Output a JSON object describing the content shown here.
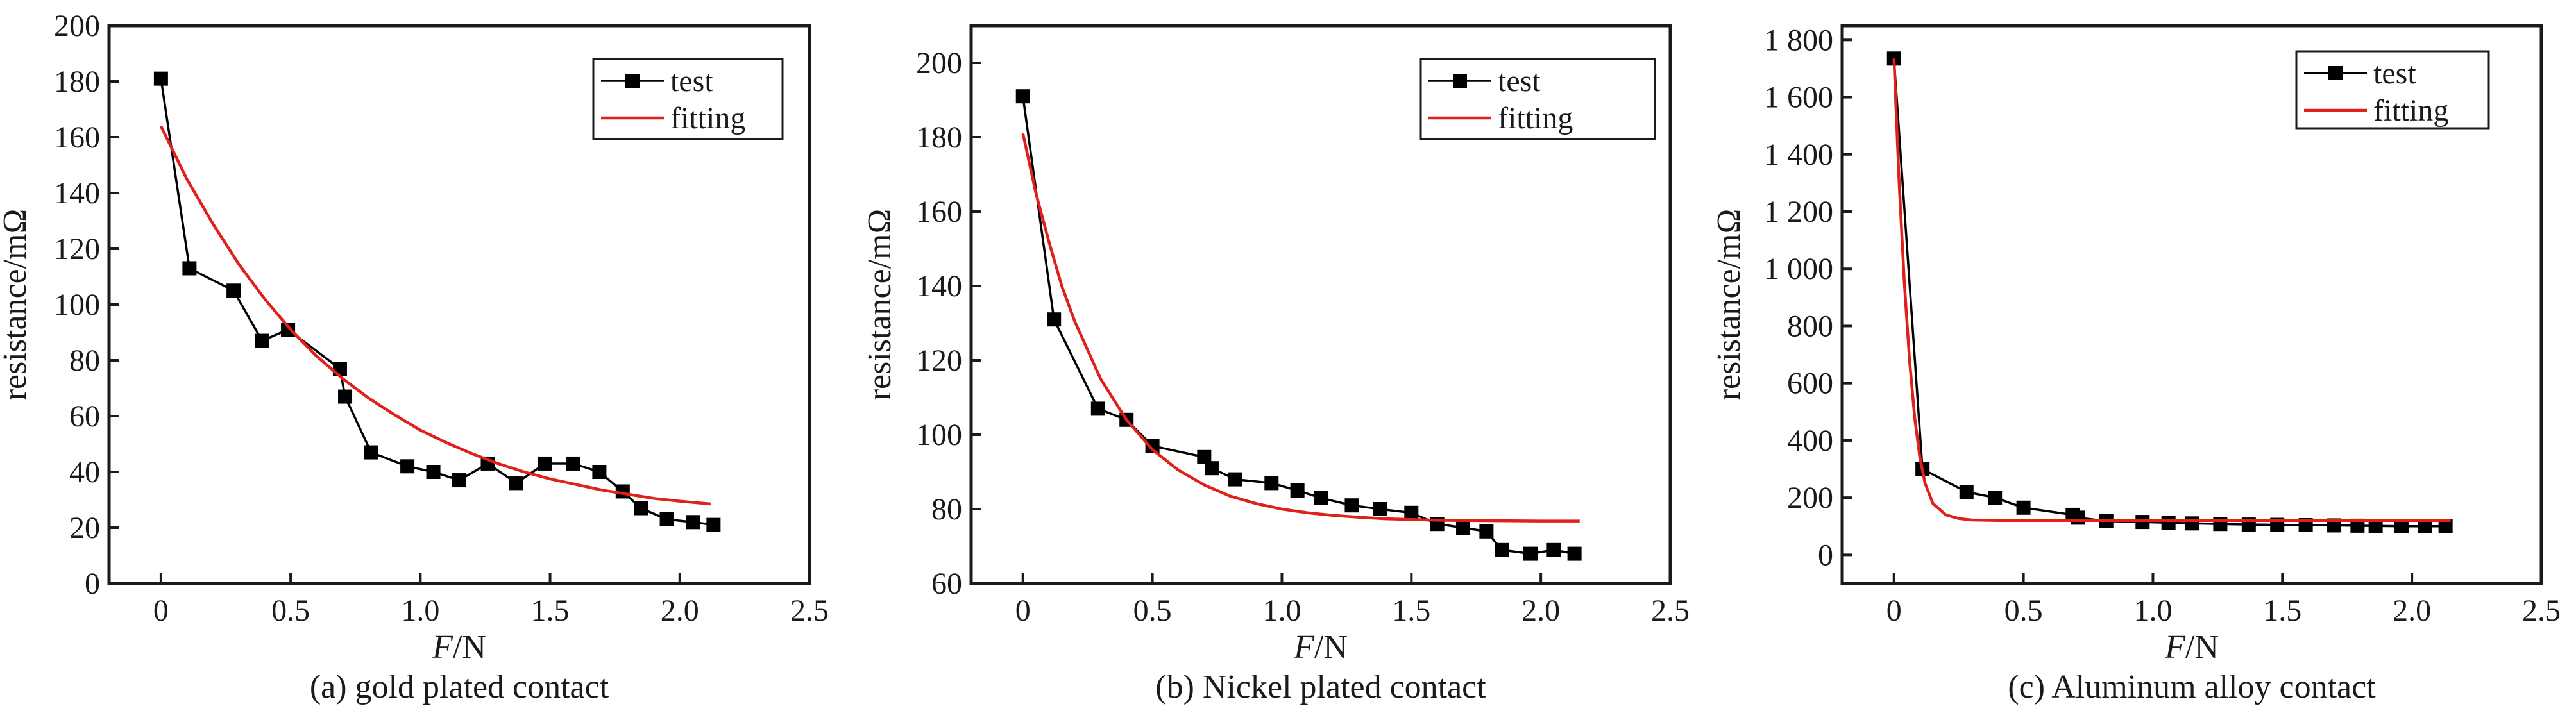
{
  "chart_data": [
    {
      "type": "line",
      "caption": "(a)  gold plated contact",
      "xlabel_italic": "F",
      "xlabel_unit": "/N",
      "ylabel": "resistance/mΩ",
      "xlim": [
        -0.2,
        2.5
      ],
      "ylim": [
        0,
        200
      ],
      "xticks": [
        0,
        0.5,
        1.0,
        1.5,
        2.0,
        2.5
      ],
      "xtick_labels": [
        "0",
        "0.5",
        "1.0",
        "1.5",
        "2.0",
        "2.5"
      ],
      "yticks": [
        0,
        20,
        40,
        60,
        80,
        100,
        120,
        140,
        160,
        180,
        200
      ],
      "ytick_labels": [
        "0",
        "20",
        "40",
        "60",
        "80",
        "100",
        "120",
        "140",
        "160",
        "180",
        "200"
      ],
      "legend": {
        "position": "top-right",
        "entries": [
          "test",
          "fitting"
        ]
      },
      "series": [
        {
          "name": "test",
          "kind": "markers-line",
          "color": "#000000",
          "x": [
            0.0,
            0.11,
            0.28,
            0.39,
            0.49,
            0.69,
            0.71,
            0.81,
            0.95,
            1.05,
            1.15,
            1.26,
            1.37,
            1.48,
            1.59,
            1.69,
            1.78,
            1.85,
            1.95,
            2.05,
            2.13
          ],
          "y": [
            181,
            113,
            105,
            87,
            91,
            77,
            67,
            47,
            42,
            40,
            37,
            43,
            36,
            43,
            43,
            40,
            33,
            27,
            23,
            22,
            21
          ]
        },
        {
          "name": "fitting",
          "kind": "curve",
          "color": "#e0201b",
          "x": [
            0.0,
            0.1,
            0.2,
            0.3,
            0.4,
            0.5,
            0.6,
            0.7,
            0.8,
            0.9,
            1.0,
            1.1,
            1.2,
            1.3,
            1.4,
            1.5,
            1.6,
            1.7,
            1.8,
            1.9,
            2.0,
            2.12
          ],
          "y": [
            164,
            145,
            129,
            114.5,
            102,
            91,
            81.5,
            73.5,
            66.5,
            60.5,
            55,
            50.5,
            46.5,
            43,
            40,
            37.5,
            35.5,
            33.5,
            32,
            30.5,
            29.5,
            28.5
          ]
        }
      ]
    },
    {
      "type": "line",
      "caption": "(b)  Nickel plated contact",
      "xlabel_italic": "F",
      "xlabel_unit": "/N",
      "ylabel": "resistance/mΩ",
      "xlim": [
        -0.2,
        2.5
      ],
      "ylim": [
        60,
        210
      ],
      "xticks": [
        0,
        0.5,
        1.0,
        1.5,
        2.0,
        2.5
      ],
      "xtick_labels": [
        "0",
        "0.5",
        "1.0",
        "1.5",
        "2.0",
        "2.5"
      ],
      "yticks": [
        60,
        80,
        100,
        120,
        140,
        160,
        180,
        200
      ],
      "ytick_labels": [
        "60",
        "80",
        "100",
        "120",
        "140",
        "160",
        "180",
        "200"
      ],
      "legend": {
        "position": "top-right",
        "entries": [
          "test",
          "fitting"
        ]
      },
      "series": [
        {
          "name": "test",
          "kind": "markers-line",
          "color": "#000000",
          "x": [
            0.0,
            0.12,
            0.29,
            0.4,
            0.5,
            0.7,
            0.73,
            0.82,
            0.96,
            1.06,
            1.15,
            1.27,
            1.38,
            1.5,
            1.6,
            1.7,
            1.79,
            1.85,
            1.96,
            2.05,
            2.13
          ],
          "y": [
            191,
            131,
            107,
            104,
            97,
            94,
            91,
            88,
            87,
            85,
            83,
            81,
            80,
            79,
            76,
            75,
            74,
            69,
            68,
            69,
            68
          ]
        },
        {
          "name": "fitting",
          "kind": "curve",
          "color": "#e0201b",
          "x": [
            0.0,
            0.05,
            0.1,
            0.15,
            0.2,
            0.3,
            0.4,
            0.5,
            0.6,
            0.7,
            0.8,
            0.9,
            1.0,
            1.1,
            1.2,
            1.3,
            1.4,
            1.5,
            1.6,
            1.8,
            2.0,
            2.15
          ],
          "y": [
            181,
            165,
            152,
            140,
            130.5,
            115,
            104,
            96,
            90.5,
            86.5,
            83.5,
            81.5,
            80,
            79,
            78.3,
            77.8,
            77.4,
            77.2,
            77,
            76.9,
            76.8,
            76.8
          ]
        }
      ]
    },
    {
      "type": "line",
      "caption": "(c)  Aluminum alloy contact",
      "xlabel_italic": "F",
      "xlabel_unit": "/N",
      "ylabel": "resistance/mΩ",
      "xlim": [
        -0.2,
        2.5
      ],
      "ylim": [
        -100,
        1850
      ],
      "xticks": [
        0,
        0.5,
        1.0,
        1.5,
        2.0,
        2.5
      ],
      "xtick_labels": [
        "0",
        "0.5",
        "1.0",
        "1.5",
        "2.0",
        "2.5"
      ],
      "yticks": [
        0,
        200,
        400,
        600,
        800,
        1000,
        1200,
        1400,
        1600,
        1800
      ],
      "ytick_labels": [
        "0",
        "200",
        "400",
        "600",
        "800",
        "1 000",
        "1 200",
        "1 400",
        "1 600",
        "1 800"
      ],
      "legend": {
        "position": "top-right",
        "entries": [
          "test",
          "fitting"
        ]
      },
      "series": [
        {
          "name": "test",
          "kind": "markers-line",
          "color": "#000000",
          "x": [
            0.0,
            0.11,
            0.28,
            0.39,
            0.5,
            0.69,
            0.71,
            0.82,
            0.96,
            1.06,
            1.15,
            1.26,
            1.37,
            1.48,
            1.59,
            1.7,
            1.79,
            1.86,
            1.96,
            2.05,
            2.13
          ],
          "y": [
            1735,
            300,
            220,
            200,
            165,
            140,
            130,
            118,
            115,
            112,
            110,
            108,
            106,
            105,
            104,
            103,
            102,
            101,
            100,
            100,
            100
          ]
        },
        {
          "name": "fitting",
          "kind": "curve",
          "color": "#e0201b",
          "x": [
            0.0,
            0.02,
            0.04,
            0.06,
            0.08,
            0.1,
            0.12,
            0.15,
            0.2,
            0.25,
            0.3,
            0.4,
            0.5,
            0.7,
            1.0,
            1.5,
            2.0,
            2.15
          ],
          "y": [
            1735,
            1300,
            950,
            680,
            480,
            340,
            250,
            180,
            140,
            127,
            122,
            120,
            120,
            120,
            120,
            120,
            120,
            120
          ]
        }
      ]
    }
  ]
}
